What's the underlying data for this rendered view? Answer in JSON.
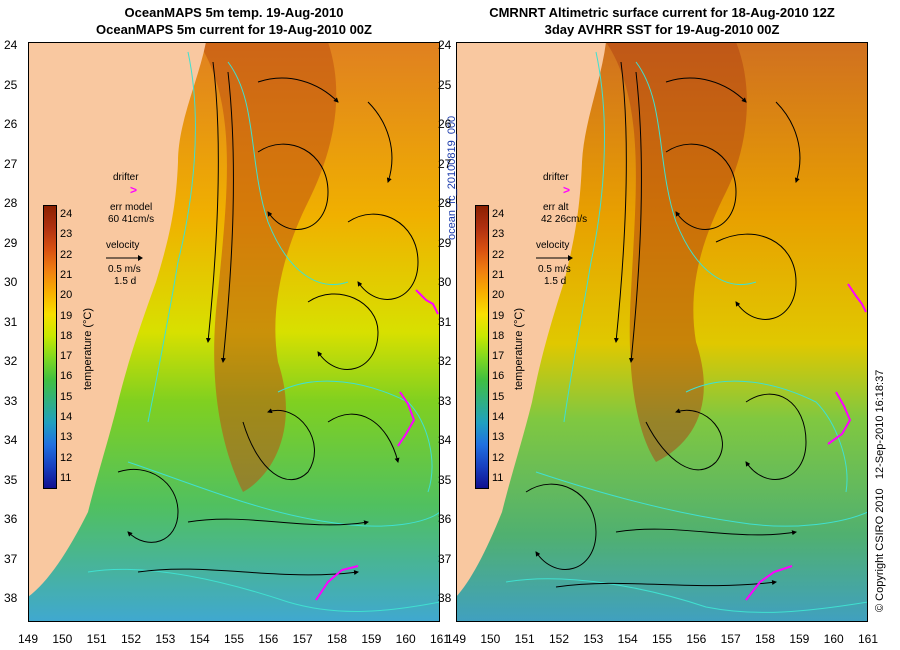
{
  "titles": {
    "left_line1": "OceanMAPS 5m temp. 19-Aug-2010",
    "left_line2": "OceanMAPS 5m current for 19-Aug-2010 00Z",
    "right_line1": "CMRNRT Altimetric surface current for 18-Aug-2010 12Z",
    "right_line2": "3day AVHRR SST for 19-Aug-2010 00Z"
  },
  "axes": {
    "lat_labels": [
      "24",
      "25",
      "26",
      "27",
      "28",
      "29",
      "30",
      "31",
      "32",
      "33",
      "34",
      "35",
      "36",
      "37",
      "38"
    ],
    "lon_labels": [
      "149",
      "150",
      "151",
      "152",
      "153",
      "154",
      "155",
      "156",
      "157",
      "158",
      "159",
      "160",
      "161"
    ]
  },
  "left_legend": {
    "drifter": "drifter",
    "err_label": "err model",
    "err_value": "60 41cm/s",
    "velocity": "velocity",
    "speed": "0.5 m/s",
    "duration": "1.5 d"
  },
  "right_legend": {
    "drifter": "drifter",
    "err_label": "err alt",
    "err_value": "42 26cm/s",
    "velocity": "velocity",
    "speed": "0.5 m/s",
    "duration": "1.5 d"
  },
  "colorbar": {
    "label": "temperature (°C)",
    "ticks": [
      "24",
      "23",
      "22",
      "21",
      "20",
      "19",
      "18",
      "17",
      "16",
      "15",
      "14",
      "13",
      "12",
      "11"
    ]
  },
  "side_text": {
    "file_id": "ocean_fc_20100819_000",
    "copyright": "© Copyright CSIRO 2010",
    "timestamp": "12-Sep-2010 16:18:37"
  },
  "colors": {
    "land": "#f9c8a0",
    "contour": "#40e0d0",
    "drifter": "#ff00ff",
    "warm": "#b04010",
    "cool": "#30b040"
  }
}
